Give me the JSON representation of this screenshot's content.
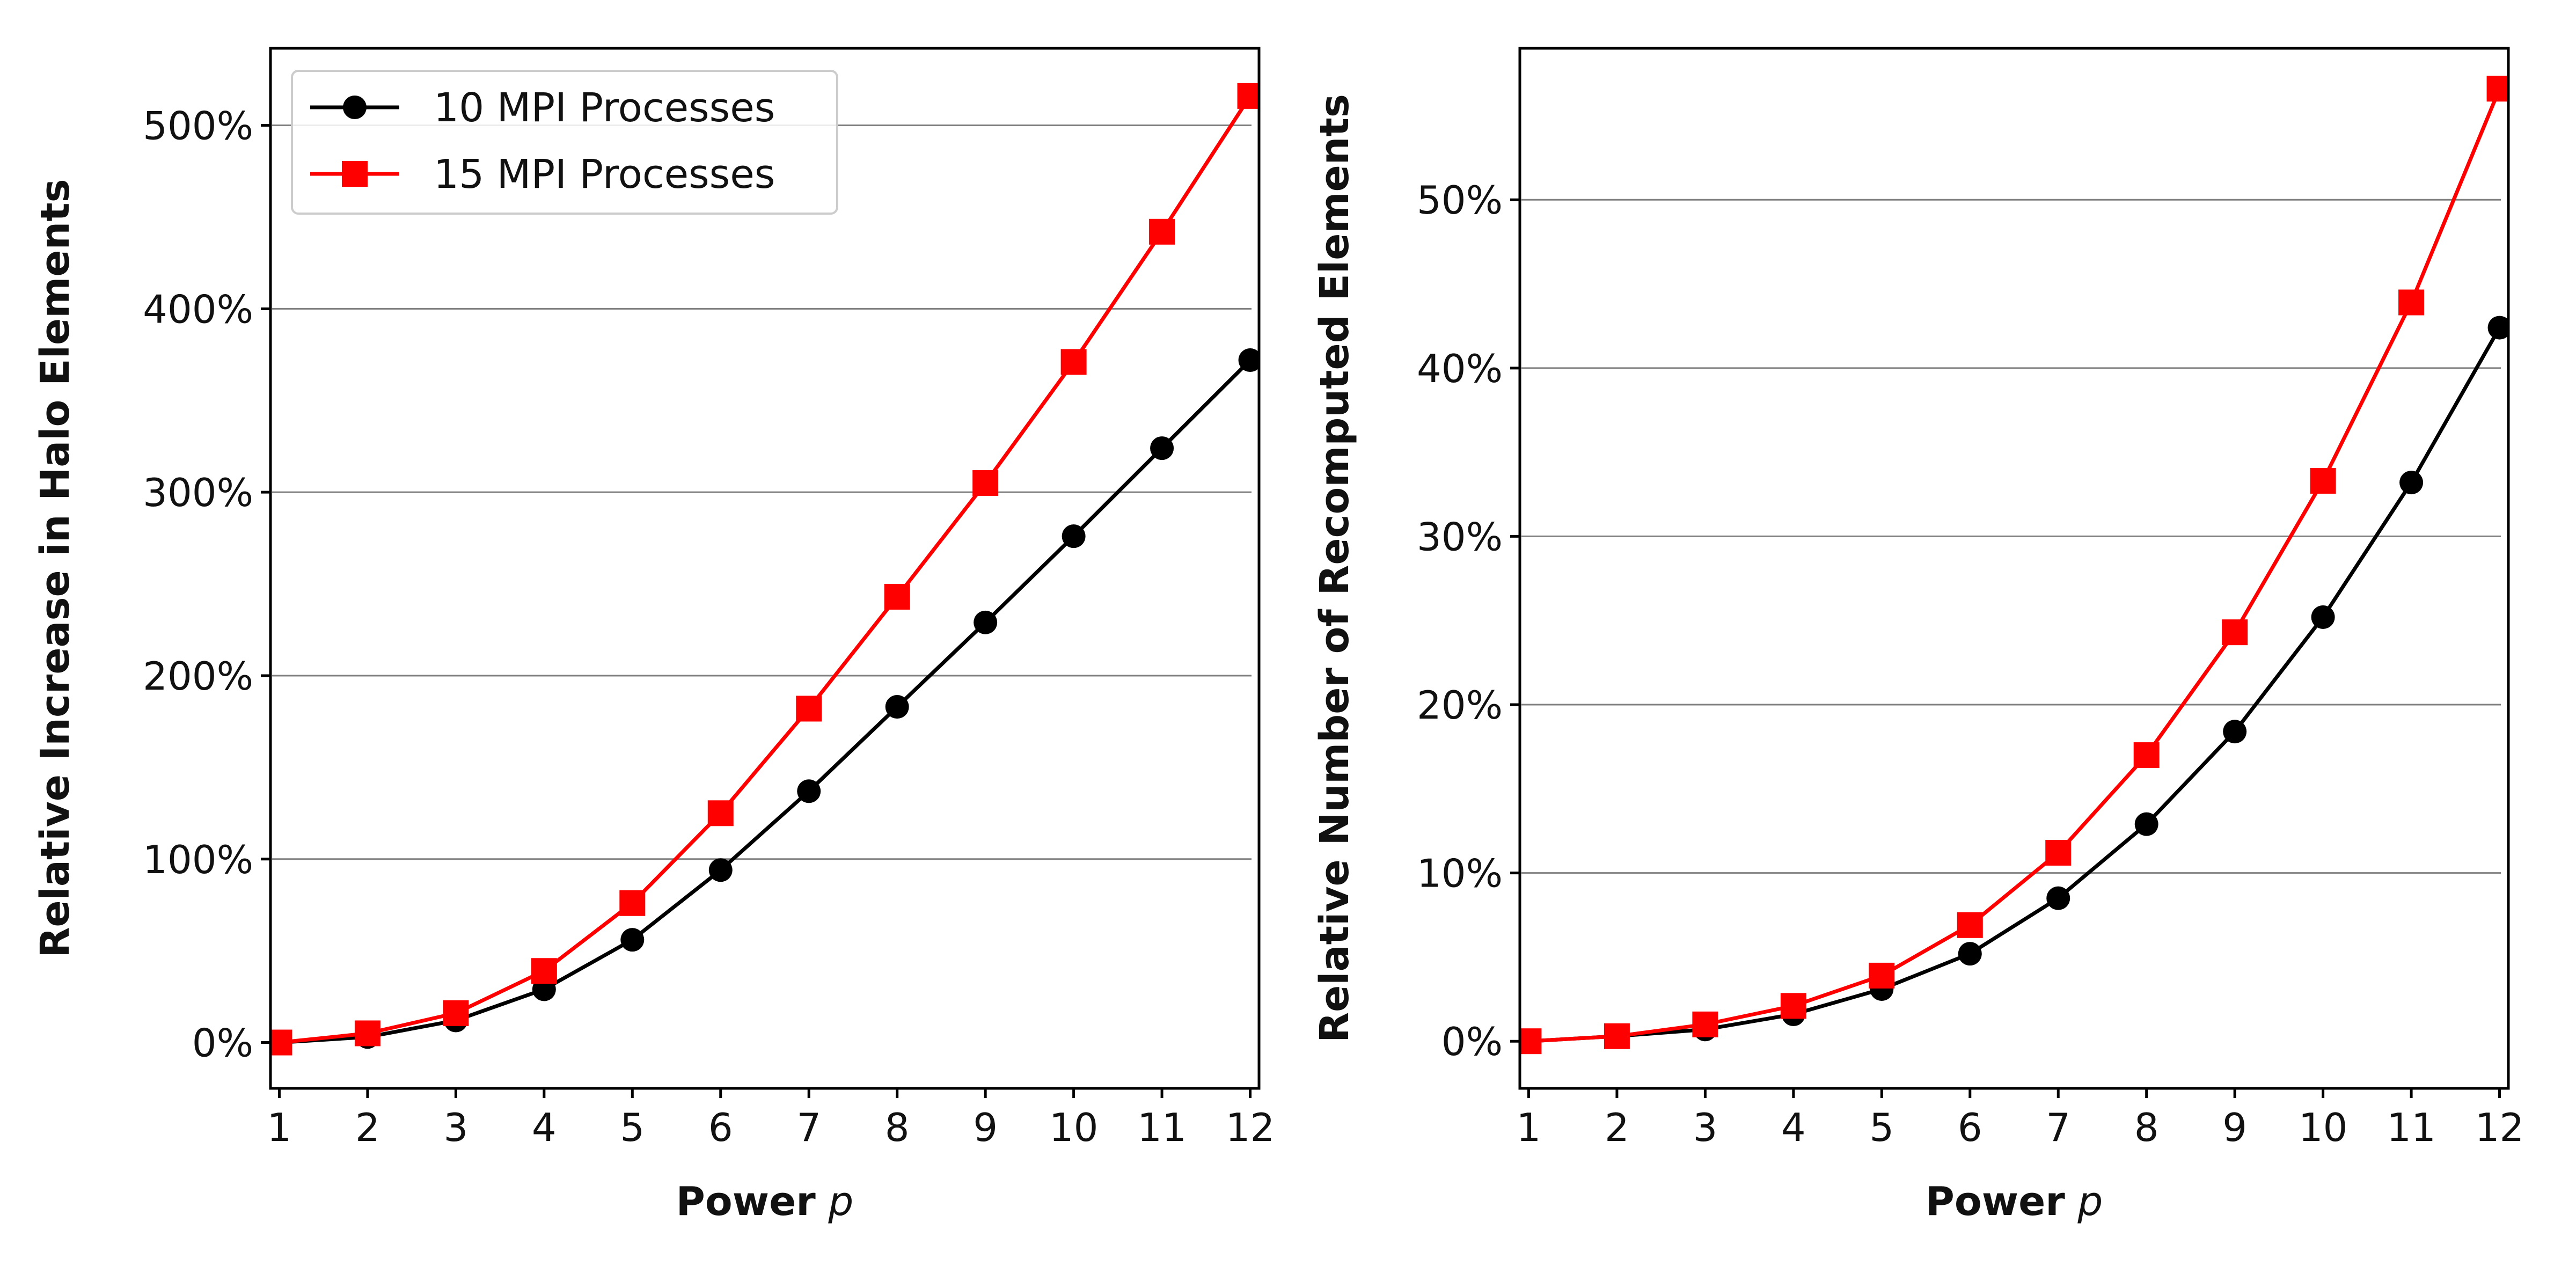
{
  "chart_data": [
    {
      "type": "line",
      "title": "",
      "xlabel": "Power",
      "xlabel_var": "p",
      "ylabel": "Relative Increase in Halo Elements",
      "x": [
        1,
        2,
        3,
        4,
        5,
        6,
        7,
        8,
        9,
        10,
        11,
        12
      ],
      "xticks": [
        1,
        2,
        3,
        4,
        5,
        6,
        7,
        8,
        9,
        10,
        11,
        12
      ],
      "yticks": [
        0,
        100,
        200,
        300,
        400,
        500
      ],
      "ytick_labels": [
        "0%",
        "100%",
        "200%",
        "300%",
        "400%",
        "500%"
      ],
      "xlim": [
        0.9,
        12.1
      ],
      "ylim": [
        -25,
        542
      ],
      "grid": "horizontal",
      "legend_position": "top-left",
      "series": [
        {
          "name": "10 MPI Processes",
          "color": "#000000",
          "marker": "circle",
          "values": [
            0,
            3,
            12,
            29,
            56,
            94,
            137,
            183,
            229,
            276,
            324,
            372
          ]
        },
        {
          "name": "15 MPI Processes",
          "color": "#ff0000",
          "marker": "square",
          "values": [
            0,
            5,
            16,
            39,
            76,
            125,
            182,
            243,
            305,
            371,
            442,
            516
          ]
        }
      ]
    },
    {
      "type": "line",
      "title": "",
      "xlabel": "Power",
      "xlabel_var": "p",
      "ylabel": "Relative Number of Recomputed Elements",
      "x": [
        1,
        2,
        3,
        4,
        5,
        6,
        7,
        8,
        9,
        10,
        11,
        12
      ],
      "xticks": [
        1,
        2,
        3,
        4,
        5,
        6,
        7,
        8,
        9,
        10,
        11,
        12
      ],
      "yticks": [
        0,
        10,
        20,
        30,
        40,
        50
      ],
      "ytick_labels": [
        "0%",
        "10%",
        "20%",
        "30%",
        "40%",
        "50%"
      ],
      "xlim": [
        0.9,
        12.1
      ],
      "ylim": [
        -2.8,
        59
      ],
      "grid": "horizontal",
      "legend_position": "none",
      "series": [
        {
          "name": "10 MPI Processes",
          "color": "#000000",
          "marker": "circle",
          "values": [
            0,
            0.3,
            0.7,
            1.6,
            3.1,
            5.2,
            8.5,
            12.9,
            18.4,
            25.2,
            33.2,
            42.4
          ]
        },
        {
          "name": "15 MPI Processes",
          "color": "#ff0000",
          "marker": "square",
          "values": [
            0,
            0.3,
            1.0,
            2.1,
            3.9,
            6.9,
            11.2,
            17.0,
            24.3,
            33.3,
            43.9,
            56.6
          ]
        }
      ]
    }
  ]
}
